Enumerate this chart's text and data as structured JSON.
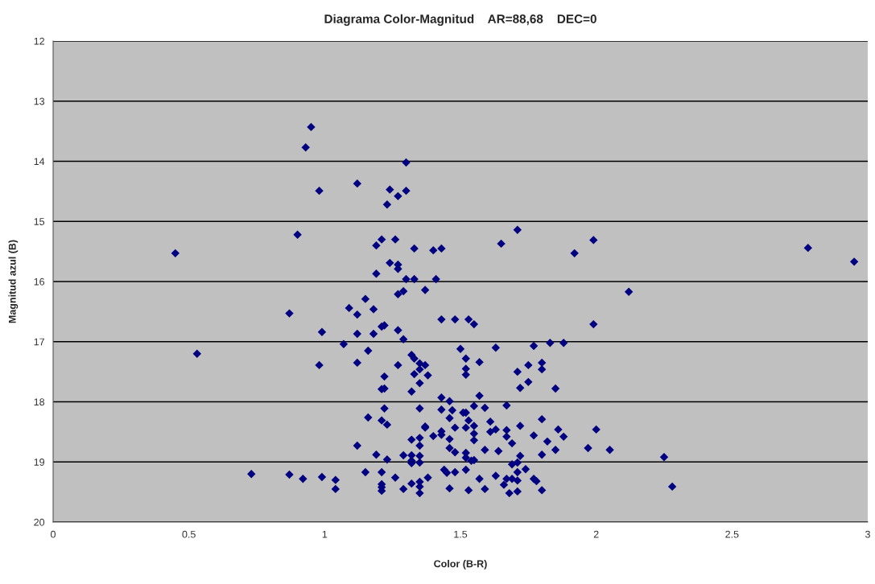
{
  "chart_data": {
    "type": "scatter",
    "title": "Diagrama Color-Magnitud    AR=88,68    DEC=0",
    "xlabel": "Color (B-R)",
    "ylabel": "Magnitud azul (B)",
    "xlim": [
      0,
      3
    ],
    "xticks": [
      0,
      0.5,
      1,
      1.5,
      2,
      2.5,
      3
    ],
    "ylim": [
      20,
      12
    ],
    "yticks": [
      12,
      13,
      14,
      15,
      16,
      17,
      18,
      19,
      20
    ],
    "grid": "y",
    "marker": "diamond",
    "series": [
      {
        "color": "#000080",
        "x": [
          0.45,
          0.53,
          0.73,
          0.95,
          0.93,
          1.3,
          1.12,
          1.24,
          0.98,
          1.27,
          1.23,
          1.3,
          0.9,
          1.19,
          1.21,
          1.26,
          1.33,
          1.4,
          1.43,
          1.24,
          1.27,
          1.27,
          1.19,
          1.3,
          1.33,
          1.41,
          1.27,
          1.29,
          1.37,
          1.15,
          0.87,
          1.09,
          1.12,
          1.18,
          1.43,
          1.48,
          0.99,
          1.12,
          1.18,
          1.21,
          1.22,
          1.27,
          1.29,
          1.07,
          1.16,
          1.32,
          1.33,
          1.35,
          1.37,
          1.35,
          0.98,
          1.12,
          1.27,
          1.33,
          1.38,
          1.22,
          1.35,
          1.21,
          1.22,
          1.32,
          1.43,
          1.46,
          1.22,
          1.35,
          1.43,
          1.47,
          1.46,
          1.16,
          1.21,
          1.23,
          1.37,
          1.37,
          1.4,
          1.43,
          1.43,
          1.46,
          1.46,
          1.48,
          1.48,
          1.32,
          1.35,
          1.35,
          1.12,
          1.19,
          1.23,
          1.29,
          1.32,
          1.32,
          1.32,
          1.35,
          1.35,
          0.87,
          0.92,
          0.99,
          1.04,
          1.04,
          1.15,
          1.21,
          1.21,
          1.21,
          1.21,
          1.26,
          1.29,
          1.32,
          1.35,
          1.35,
          1.35,
          1.38,
          1.44,
          1.45,
          1.46,
          1.48,
          1.71,
          1.65,
          1.92,
          1.99,
          1.53,
          1.55,
          1.99,
          1.5,
          1.63,
          1.77,
          1.83,
          1.88,
          1.52,
          1.57,
          1.52,
          1.52,
          1.71,
          1.75,
          1.8,
          1.8,
          1.75,
          1.72,
          1.85,
          1.57,
          1.55,
          1.59,
          1.67,
          1.51,
          1.52,
          1.53,
          1.61,
          1.8,
          1.52,
          1.55,
          1.61,
          1.63,
          1.67,
          1.67,
          1.72,
          1.77,
          1.86,
          1.88,
          2.0,
          1.55,
          1.55,
          1.69,
          1.82,
          1.59,
          1.64,
          1.85,
          1.97,
          2.05,
          1.52,
          1.52,
          1.54,
          1.55,
          1.72,
          1.8,
          1.69,
          1.71,
          1.52,
          1.71,
          1.74,
          1.57,
          1.63,
          1.67,
          1.66,
          1.69,
          1.71,
          1.77,
          1.78,
          1.53,
          1.59,
          1.68,
          1.71,
          1.8,
          2.78,
          2.95,
          2.12,
          2.25,
          2.28
        ],
        "values": [
          15.53,
          17.2,
          19.2,
          13.43,
          13.77,
          14.02,
          14.37,
          14.47,
          14.49,
          14.58,
          14.72,
          14.49,
          15.22,
          15.4,
          15.3,
          15.3,
          15.45,
          15.48,
          15.45,
          15.69,
          15.72,
          15.79,
          15.87,
          15.96,
          15.96,
          15.96,
          16.21,
          16.16,
          16.14,
          16.29,
          16.53,
          16.44,
          16.55,
          16.46,
          16.63,
          16.63,
          16.84,
          16.87,
          16.87,
          16.75,
          16.73,
          16.81,
          16.96,
          17.04,
          17.15,
          17.22,
          17.28,
          17.36,
          17.39,
          17.46,
          17.39,
          17.35,
          17.39,
          17.54,
          17.56,
          17.58,
          17.69,
          17.79,
          17.78,
          17.83,
          17.93,
          17.99,
          18.11,
          18.11,
          18.13,
          18.14,
          18.27,
          18.26,
          18.31,
          18.38,
          18.41,
          18.43,
          18.57,
          18.49,
          18.55,
          18.62,
          18.77,
          18.84,
          18.43,
          18.63,
          18.6,
          18.73,
          18.73,
          18.88,
          18.96,
          18.89,
          18.89,
          18.98,
          19.02,
          18.9,
          19.01,
          19.21,
          19.28,
          19.25,
          19.3,
          19.45,
          19.17,
          19.17,
          19.37,
          19.42,
          19.48,
          19.26,
          19.45,
          19.36,
          19.33,
          19.41,
          19.52,
          19.26,
          19.13,
          19.18,
          19.44,
          19.17,
          15.14,
          15.37,
          15.53,
          15.31,
          16.63,
          16.71,
          16.71,
          17.12,
          17.1,
          17.07,
          17.02,
          17.02,
          17.28,
          17.34,
          17.45,
          17.55,
          17.5,
          17.39,
          17.35,
          17.46,
          17.67,
          17.77,
          17.78,
          17.9,
          18.07,
          18.1,
          18.06,
          18.18,
          18.18,
          18.31,
          18.33,
          18.29,
          18.43,
          18.4,
          18.5,
          18.46,
          18.47,
          18.58,
          18.4,
          18.56,
          18.46,
          18.58,
          18.46,
          18.53,
          18.64,
          18.69,
          18.66,
          18.8,
          18.82,
          18.8,
          18.77,
          18.8,
          18.85,
          18.93,
          18.98,
          18.97,
          18.9,
          18.88,
          19.04,
          19.01,
          19.13,
          19.17,
          19.12,
          19.28,
          19.23,
          19.28,
          19.38,
          19.28,
          19.31,
          19.28,
          19.32,
          19.47,
          19.45,
          19.52,
          19.49,
          19.47,
          15.44,
          15.67,
          16.17,
          18.92,
          19.41
        ]
      }
    ]
  }
}
